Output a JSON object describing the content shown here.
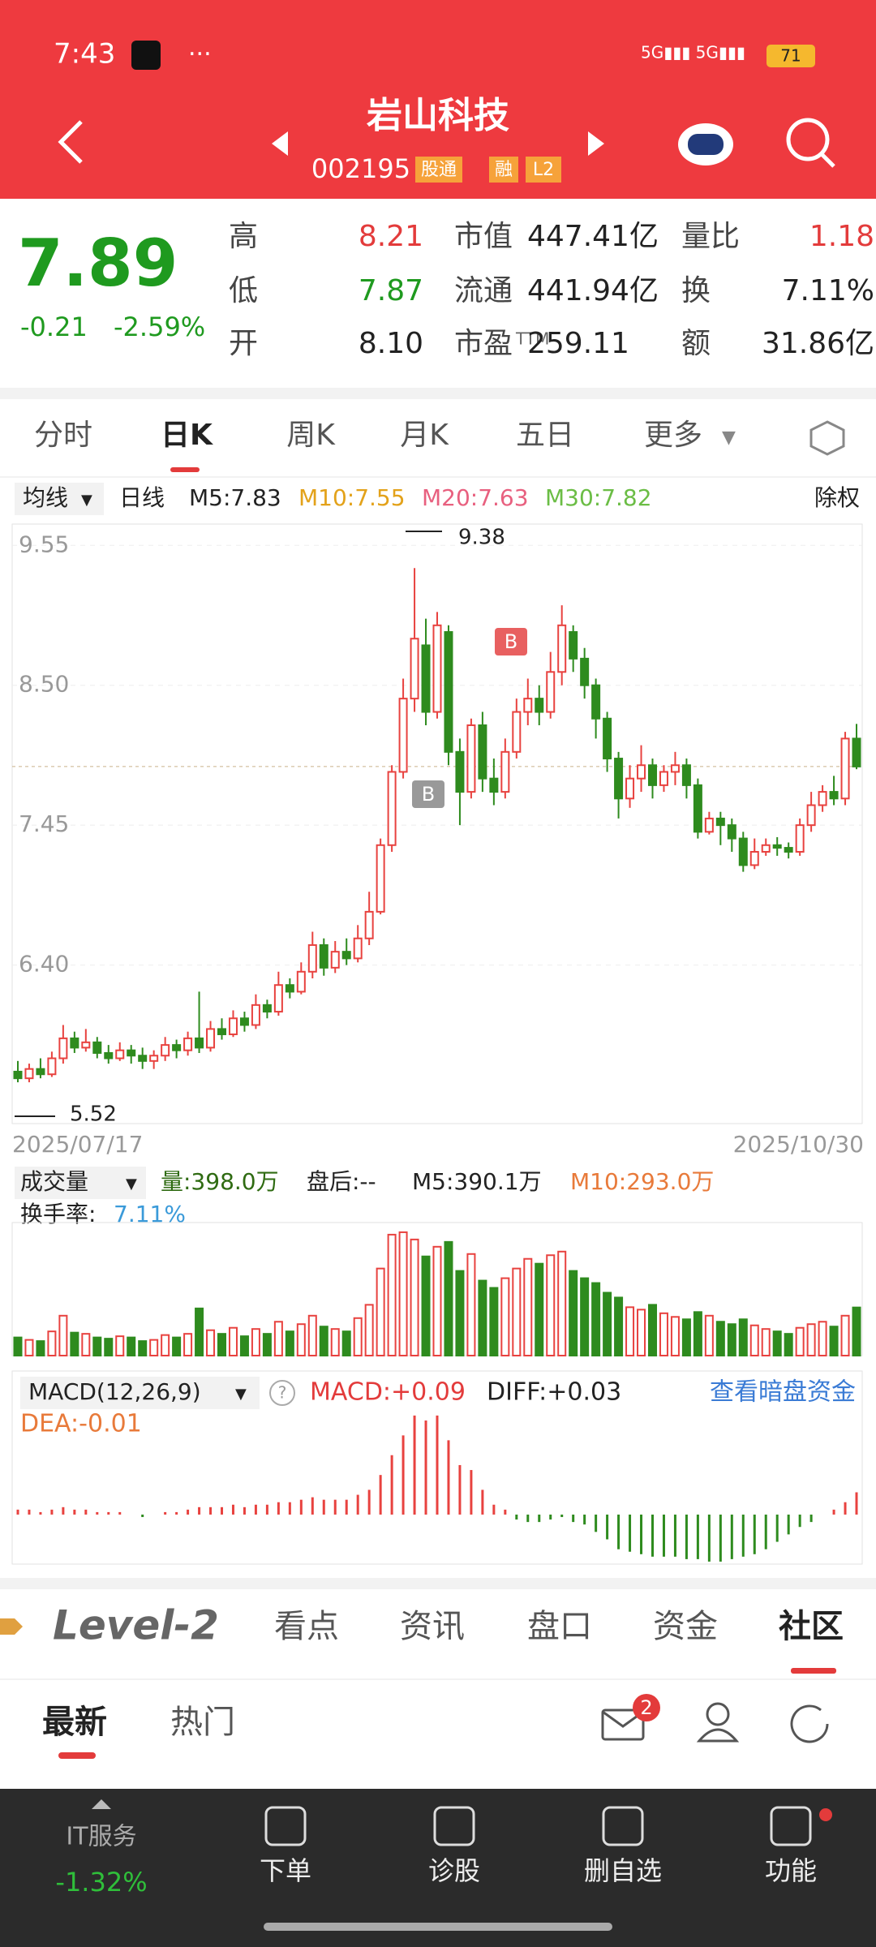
{
  "status_bar": {
    "time": "7:43",
    "battery": "71"
  },
  "header": {
    "title": "岩山科技",
    "code": "002195",
    "badges": [
      "股通",
      "融",
      "L2"
    ]
  },
  "quote": {
    "price": "7.89",
    "change": "-0.21",
    "change_pct": "-2.59%",
    "stats": [
      {
        "label": "高",
        "value": "8.21"
      },
      {
        "label": "低",
        "value": "7.87"
      },
      {
        "label": "开",
        "value": "8.10"
      },
      {
        "label": "市值",
        "value": "447.41亿"
      },
      {
        "label": "流通",
        "value": "441.94亿"
      },
      {
        "label": "市盈",
        "sup": "TTM",
        "value": "259.11"
      },
      {
        "label": "量比",
        "value": "1.18"
      },
      {
        "label": "换",
        "value": "7.11%"
      },
      {
        "label": "额",
        "value": "31.86亿"
      }
    ]
  },
  "tabs": [
    "分时",
    "日K",
    "周K",
    "月K",
    "五日",
    "更多"
  ],
  "ma_bar": {
    "selector": "均线",
    "period": "日线",
    "m5": "M5:7.83",
    "m10": "M10:7.55",
    "m20": "M20:7.63",
    "m30": "M30:7.82",
    "right": "除权"
  },
  "volume_header": {
    "selector": "成交量",
    "volume": "量:398.0万",
    "after_hours": "盘后:--",
    "m5": "M5:390.1万",
    "m10": "M10:293.0万",
    "turnover_label": "换手率:",
    "turnover": "7.11%"
  },
  "macd_header": {
    "selector": "MACD(12,26,9)",
    "help": "?",
    "macd": "MACD:+0.09",
    "diff": "DIFF:+0.03",
    "link": "查看暗盘资金",
    "dea": "DEA:-0.01"
  },
  "chart_data": [
    {
      "type": "candlestick",
      "date_labels": [
        "2025/07/17",
        "2025/10/30"
      ],
      "up_color": "#e8423f",
      "down_color": "#2e8b1e",
      "ylim": [
        5.21,
        9.71
      ],
      "yticks": [
        9.55,
        {
          "value": 8.5,
          "label": "8.50"
        },
        7.45,
        {
          "value": 6.4,
          "label": "6.40"
        }
      ],
      "max_label": 9.38,
      "min_label": 5.52,
      "markers": [
        "B",
        "B"
      ],
      "open": [
        5.6,
        5.55,
        5.62,
        5.58,
        5.7,
        5.85,
        5.78,
        5.82,
        5.74,
        5.7,
        5.76,
        5.72,
        5.68,
        5.72,
        5.8,
        5.76,
        5.85,
        5.78,
        5.92,
        5.88,
        6.0,
        5.95,
        6.1,
        6.05,
        6.25,
        6.2,
        6.35,
        6.55,
        6.38,
        6.5,
        6.45,
        6.6,
        6.8,
        7.3,
        7.85,
        8.4,
        8.8,
        8.3,
        8.9,
        8.0,
        7.7,
        8.2,
        7.8,
        7.7,
        8.0,
        8.3,
        8.4,
        8.3,
        8.6,
        8.9,
        8.7,
        8.5,
        8.25,
        7.95,
        7.65,
        7.8,
        7.9,
        7.75,
        7.85,
        7.9,
        7.75,
        7.4,
        7.5,
        7.45,
        7.35,
        7.15,
        7.25,
        7.3,
        7.28,
        7.25,
        7.45,
        7.6,
        7.7,
        7.65,
        8.1
      ],
      "close": [
        5.55,
        5.62,
        5.58,
        5.7,
        5.85,
        5.78,
        5.82,
        5.74,
        5.7,
        5.76,
        5.72,
        5.68,
        5.72,
        5.8,
        5.76,
        5.85,
        5.78,
        5.92,
        5.88,
        6.0,
        5.95,
        6.1,
        6.05,
        6.25,
        6.2,
        6.35,
        6.55,
        6.38,
        6.5,
        6.45,
        6.6,
        6.8,
        7.3,
        7.85,
        8.4,
        8.85,
        8.3,
        8.95,
        8.0,
        7.7,
        8.2,
        7.8,
        7.7,
        8.0,
        8.3,
        8.4,
        8.3,
        8.6,
        8.95,
        8.7,
        8.5,
        8.25,
        7.95,
        7.65,
        7.8,
        7.9,
        7.75,
        7.85,
        7.9,
        7.75,
        7.4,
        7.5,
        7.45,
        7.35,
        7.15,
        7.25,
        7.3,
        7.28,
        7.25,
        7.45,
        7.6,
        7.7,
        7.65,
        8.1,
        7.89
      ],
      "high": [
        5.68,
        5.66,
        5.7,
        5.75,
        5.95,
        5.9,
        5.92,
        5.86,
        5.8,
        5.82,
        5.8,
        5.78,
        5.76,
        5.86,
        5.84,
        5.9,
        6.2,
        5.98,
        6.0,
        6.06,
        6.05,
        6.18,
        6.14,
        6.35,
        6.3,
        6.42,
        6.65,
        6.6,
        6.58,
        6.6,
        6.7,
        6.95,
        7.35,
        7.9,
        8.55,
        9.38,
        9.0,
        9.05,
        8.95,
        8.1,
        8.25,
        8.3,
        7.95,
        8.1,
        8.4,
        8.55,
        8.5,
        8.75,
        9.1,
        8.95,
        8.78,
        8.55,
        8.3,
        8.0,
        7.9,
        8.05,
        7.95,
        7.9,
        8.0,
        7.95,
        7.8,
        7.55,
        7.55,
        7.5,
        7.4,
        7.35,
        7.35,
        7.36,
        7.32,
        7.5,
        7.7,
        7.75,
        7.82,
        8.15,
        8.21
      ],
      "low": [
        5.52,
        5.52,
        5.55,
        5.56,
        5.66,
        5.74,
        5.75,
        5.7,
        5.66,
        5.68,
        5.66,
        5.62,
        5.62,
        5.68,
        5.7,
        5.72,
        5.74,
        5.75,
        5.84,
        5.86,
        5.9,
        5.92,
        6.0,
        6.02,
        6.15,
        6.18,
        6.3,
        6.32,
        6.34,
        6.4,
        6.42,
        6.55,
        6.78,
        7.25,
        7.8,
        8.3,
        8.2,
        8.25,
        7.9,
        7.45,
        7.65,
        7.7,
        7.6,
        7.65,
        7.95,
        8.2,
        8.2,
        8.25,
        8.5,
        8.6,
        8.4,
        8.1,
        7.85,
        7.5,
        7.58,
        7.7,
        7.65,
        7.7,
        7.75,
        7.65,
        7.35,
        7.38,
        7.3,
        7.25,
        7.1,
        7.12,
        7.22,
        7.22,
        7.2,
        7.22,
        7.4,
        7.55,
        7.6,
        7.6,
        7.87
      ]
    },
    {
      "type": "bar",
      "up_color": "#e8423f",
      "down_color": "#2e8b1e",
      "ylim": [
        0,
        1100
      ],
      "values": [
        150,
        130,
        120,
        200,
        330,
        190,
        180,
        150,
        140,
        160,
        150,
        120,
        130,
        170,
        150,
        180,
        390,
        210,
        180,
        230,
        160,
        220,
        180,
        280,
        200,
        260,
        330,
        240,
        220,
        200,
        310,
        420,
        720,
        1000,
        1020,
        960,
        820,
        900,
        940,
        700,
        840,
        620,
        560,
        640,
        720,
        800,
        760,
        830,
        860,
        700,
        640,
        600,
        520,
        480,
        400,
        380,
        420,
        350,
        320,
        300,
        360,
        330,
        280,
        260,
        300,
        250,
        220,
        200,
        180,
        230,
        260,
        280,
        240,
        330,
        398
      ]
    },
    {
      "type": "bar",
      "up_color": "#e8423f",
      "down_color": "#2e8b1e",
      "ylim": [
        -0.2,
        0.58
      ],
      "values": [
        0.02,
        0.02,
        0.01,
        0.02,
        0.03,
        0.02,
        0.02,
        0.01,
        0.01,
        0.01,
        0.0,
        -0.01,
        0.0,
        0.01,
        0.01,
        0.02,
        0.03,
        0.03,
        0.03,
        0.04,
        0.03,
        0.04,
        0.04,
        0.05,
        0.05,
        0.06,
        0.07,
        0.06,
        0.06,
        0.06,
        0.08,
        0.1,
        0.16,
        0.24,
        0.32,
        0.4,
        0.38,
        0.4,
        0.3,
        0.2,
        0.18,
        0.1,
        0.04,
        0.02,
        -0.02,
        -0.03,
        -0.03,
        -0.02,
        -0.01,
        -0.03,
        -0.04,
        -0.07,
        -0.1,
        -0.14,
        -0.15,
        -0.16,
        -0.17,
        -0.17,
        -0.17,
        -0.18,
        -0.18,
        -0.19,
        -0.19,
        -0.18,
        -0.17,
        -0.16,
        -0.14,
        -0.11,
        -0.08,
        -0.05,
        -0.03,
        0.0,
        0.02,
        0.05,
        0.09
      ]
    }
  ],
  "bottom_tabs": {
    "brand": "Level-2",
    "items": [
      "看点",
      "资讯",
      "盘口",
      "资金",
      "社区"
    ]
  },
  "feed_tabs": [
    "最新",
    "热门"
  ],
  "mail_badge": "2",
  "nav": {
    "sector": "IT服务",
    "sector_change": "-1.32%",
    "items": [
      "下单",
      "诊股",
      "删自选",
      "功能"
    ]
  }
}
